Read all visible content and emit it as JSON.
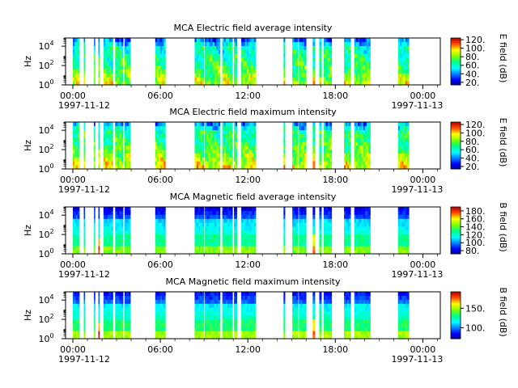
{
  "figure": {
    "instrument": "MCA"
  },
  "chart_data": [
    {
      "type": "heatmap",
      "title": "MCA  Electric field average intensity",
      "ylabel": "Hz",
      "colorbar_label": "E field (dB)",
      "colorbar_range": [
        14,
        124
      ],
      "colorbar_ticks": [
        "20.",
        "40.",
        "60.",
        "80.",
        "100.",
        "120."
      ],
      "colorbar_tick_values": [
        20,
        40,
        60,
        80,
        100,
        120
      ],
      "y_scale": "log",
      "y_ticks": [
        {
          "base": "10",
          "exp": "0",
          "value": 1
        },
        {
          "base": "10",
          "exp": "2",
          "value": 100
        },
        {
          "base": "10",
          "exp": "4",
          "value": 10000
        }
      ],
      "x_ticks": [
        "00:00",
        "06:00",
        "12:00",
        "18:00",
        "00:00"
      ],
      "x_tick_hours": [
        0,
        6,
        12,
        18,
        24
      ],
      "date_start": "1997-11-12",
      "date_end": "1997-11-13",
      "field": "E",
      "mode": "avg"
    },
    {
      "type": "heatmap",
      "title": "MCA  Electric field maximum intensity",
      "ylabel": "Hz",
      "colorbar_label": "E field (dB)",
      "colorbar_range": [
        14,
        126
      ],
      "colorbar_ticks": [
        "20.",
        "40.",
        "60.",
        "80.",
        "100.",
        "120."
      ],
      "colorbar_tick_values": [
        20,
        40,
        60,
        80,
        100,
        120
      ],
      "y_scale": "log",
      "y_ticks": [
        {
          "base": "10",
          "exp": "0",
          "value": 1
        },
        {
          "base": "10",
          "exp": "2",
          "value": 100
        },
        {
          "base": "10",
          "exp": "4",
          "value": 10000
        }
      ],
      "x_ticks": [
        "00:00",
        "06:00",
        "12:00",
        "18:00",
        "00:00"
      ],
      "x_tick_hours": [
        0,
        6,
        12,
        18,
        24
      ],
      "date_start": "1997-11-12",
      "date_end": "1997-11-13",
      "field": "E",
      "mode": "max"
    },
    {
      "type": "heatmap",
      "title": "MCA  Magnetic field average intensity",
      "ylabel": "Hz",
      "colorbar_label": "B field (dB)",
      "colorbar_range": [
        72,
        190
      ],
      "colorbar_ticks": [
        "80.",
        "100.",
        "120.",
        "140.",
        "160.",
        "180."
      ],
      "colorbar_tick_values": [
        80,
        100,
        120,
        140,
        160,
        180
      ],
      "y_scale": "log",
      "y_ticks": [
        {
          "base": "10",
          "exp": "0",
          "value": 1
        },
        {
          "base": "10",
          "exp": "2",
          "value": 100
        },
        {
          "base": "10",
          "exp": "4",
          "value": 10000
        }
      ],
      "x_ticks": [
        "00:00",
        "06:00",
        "12:00",
        "18:00",
        "00:00"
      ],
      "x_tick_hours": [
        0,
        6,
        12,
        18,
        24
      ],
      "date_start": "1997-11-12",
      "date_end": "1997-11-13",
      "field": "B",
      "mode": "avg"
    },
    {
      "type": "heatmap",
      "title": "MCA  Magnetic field maximum intensity",
      "ylabel": "Hz",
      "colorbar_label": "B field (dB)",
      "colorbar_range": [
        72,
        192
      ],
      "colorbar_ticks": [
        "100.",
        "150."
      ],
      "colorbar_tick_values": [
        100,
        150
      ],
      "y_scale": "log",
      "y_ticks": [
        {
          "base": "10",
          "exp": "0",
          "value": 1
        },
        {
          "base": "10",
          "exp": "2",
          "value": 100
        },
        {
          "base": "10",
          "exp": "4",
          "value": 10000
        }
      ],
      "x_ticks": [
        "00:00",
        "06:00",
        "12:00",
        "18:00",
        "00:00"
      ],
      "x_tick_hours": [
        0,
        6,
        12,
        18,
        24
      ],
      "date_start": "1997-11-12",
      "date_end": "1997-11-13",
      "field": "B",
      "mode": "max"
    }
  ],
  "data_segments_hours": [
    [
      0.0,
      0.45
    ],
    [
      0.75,
      0.82
    ],
    [
      1.45,
      1.52
    ],
    [
      1.75,
      1.82
    ],
    [
      2.1,
      2.75
    ],
    [
      2.9,
      3.45
    ],
    [
      3.55,
      3.95
    ],
    [
      5.65,
      6.35
    ],
    [
      8.35,
      9.0
    ],
    [
      9.05,
      10.1
    ],
    [
      10.25,
      10.95
    ],
    [
      11.05,
      11.25
    ],
    [
      11.55,
      12.55
    ],
    [
      14.45,
      14.55
    ],
    [
      15.05,
      15.45
    ],
    [
      15.5,
      16.0
    ],
    [
      16.45,
      16.6
    ],
    [
      16.9,
      17.05
    ],
    [
      17.2,
      17.75
    ],
    [
      18.6,
      19.05
    ],
    [
      19.3,
      20.4
    ],
    [
      22.3,
      23.05
    ]
  ]
}
